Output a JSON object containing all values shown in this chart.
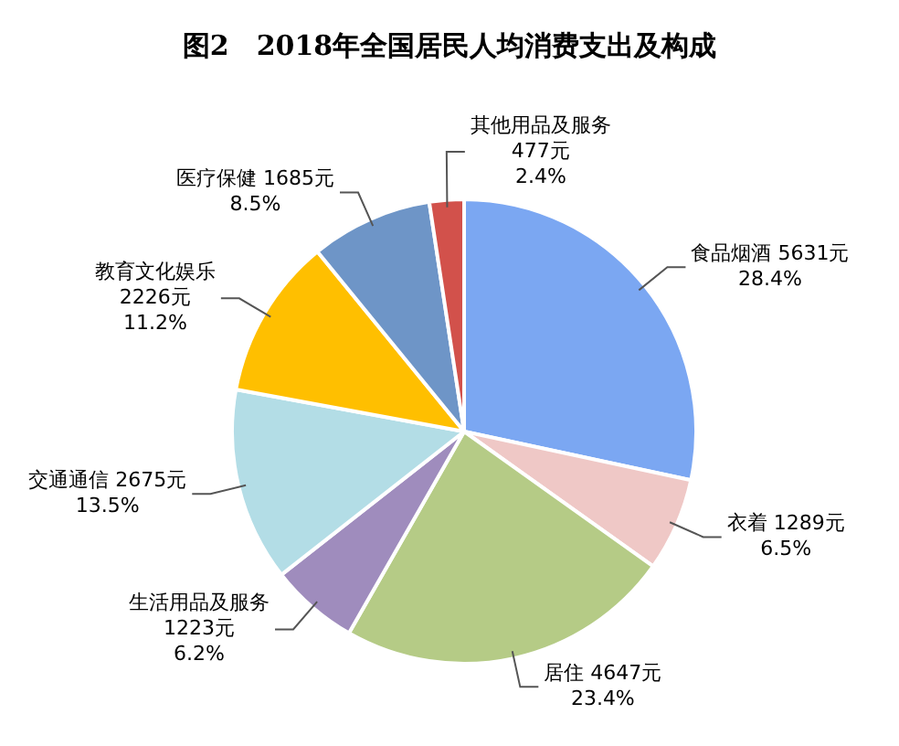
{
  "chart_data": {
    "type": "pie",
    "title": "图2　2018年全国居民人均消费支出及构成",
    "categories": [
      "食品烟酒",
      "衣着",
      "居住",
      "生活用品及服务",
      "交通通信",
      "教育文化娱乐",
      "医疗保健",
      "其他用品及服务"
    ],
    "values": [
      5631,
      1289,
      4647,
      1223,
      2675,
      2226,
      1685,
      477
    ],
    "value_labels": [
      "5631元\n28.4%",
      "1289元\n6.5%",
      "4647元\n23.4%",
      "1223元\n6.2%",
      "2675元\n13.5%",
      "2226元\n11.2%",
      "1685元\n8.5%",
      "477元\n2.4%"
    ],
    "colors": [
      "#7ba7f2",
      "#efc8c6",
      "#b5cb86",
      "#9f8cbd",
      "#b3dde6",
      "#ffbf00",
      "#6e95c7",
      "#d2514b"
    ],
    "legend": false
  }
}
